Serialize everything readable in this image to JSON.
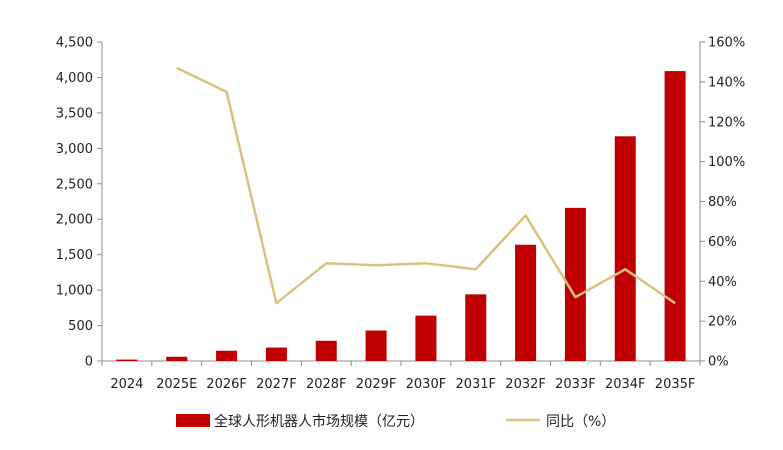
{
  "chart_data": {
    "type": "bar",
    "categories": [
      "2024",
      "2025E",
      "2026F",
      "2027F",
      "2028F",
      "2029F",
      "2030F",
      "2031F",
      "2032F",
      "2033F",
      "2034F",
      "2035F"
    ],
    "series": [
      {
        "name": "全球人形机器人市场规模（亿元）",
        "type": "bar",
        "axis": "left",
        "color": "#C00000",
        "values": [
          20,
          60,
          145,
          190,
          285,
          430,
          640,
          940,
          1640,
          2160,
          3170,
          4090
        ]
      },
      {
        "name": "同比（%）",
        "type": "line",
        "axis": "right",
        "color": "#D9C27E",
        "values": [
          null,
          147,
          135,
          29,
          49,
          48,
          49,
          46,
          73,
          32,
          46,
          29
        ]
      }
    ],
    "y_left": {
      "ylim": [
        0,
        4500
      ],
      "ticks": [
        0,
        500,
        1000,
        1500,
        2000,
        2500,
        3000,
        3500,
        4000,
        4500
      ],
      "tick_labels": [
        "0",
        "500",
        "1,000",
        "1,500",
        "2,000",
        "2,500",
        "3,000",
        "3,500",
        "4,000",
        "4,500"
      ]
    },
    "y_right": {
      "ylim": [
        0,
        160
      ],
      "ticks": [
        0,
        20,
        40,
        60,
        80,
        100,
        120,
        140,
        160
      ],
      "tick_labels": [
        "0%",
        "20%",
        "40%",
        "60%",
        "80%",
        "100%",
        "120%",
        "140%",
        "160%"
      ]
    },
    "grid": false,
    "legend": "bottom",
    "legend_entries": [
      "全球人形机器人市场规模（亿元）",
      "同比（%）"
    ],
    "title": "",
    "xlabel": "",
    "ylabel": ""
  }
}
